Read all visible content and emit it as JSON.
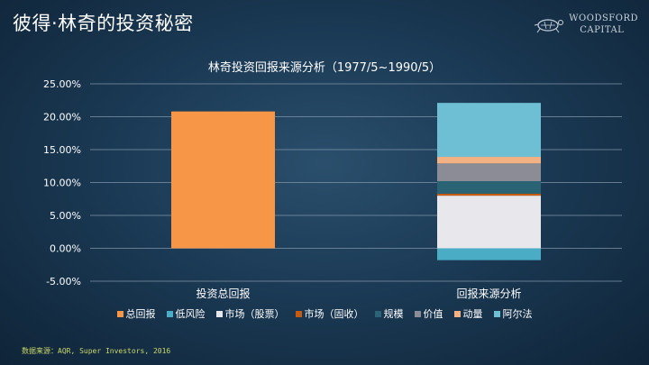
{
  "slide": {
    "title": "彼得·林奇的投资秘密",
    "logo_line1": "WOODSFORD",
    "logo_line2": "CAPITAL",
    "source": "数据来源：AQR, Super Investors, 2016"
  },
  "chart_data": {
    "type": "bar",
    "stacked": true,
    "title": "林奇投资回报来源分析（1977/5~1990/5）",
    "categories": [
      "投资总回报",
      "回报来源分析"
    ],
    "ylim": [
      -5,
      25
    ],
    "yticks": [
      25,
      20,
      15,
      10,
      5,
      0,
      -5
    ],
    "ytick_labels": [
      "25.00%",
      "20.00%",
      "15.00%",
      "10.00%",
      "5.00%",
      "0.00%",
      "-5.00%"
    ],
    "grid": true,
    "legend_position": "bottom",
    "series": [
      {
        "name": "总回报",
        "color": "#f79646",
        "values": [
          20.8,
          0
        ]
      },
      {
        "name": "低风险",
        "color": "#4bacc6",
        "values": [
          0,
          -1.8
        ]
      },
      {
        "name": "市场（股票）",
        "color": "#e8e8ec",
        "values": [
          0,
          8.0
        ]
      },
      {
        "name": "市场（固收）",
        "color": "#c55a11",
        "values": [
          0,
          0.3
        ]
      },
      {
        "name": "规模",
        "color": "#2a6373",
        "values": [
          0,
          1.9
        ]
      },
      {
        "name": "价值",
        "color": "#8c8c96",
        "values": [
          0,
          2.7
        ]
      },
      {
        "name": "动量",
        "color": "#f4b183",
        "values": [
          0,
          1.0
        ]
      },
      {
        "name": "阿尔法",
        "color": "#6fbfd4",
        "values": [
          0,
          8.2
        ]
      }
    ]
  }
}
